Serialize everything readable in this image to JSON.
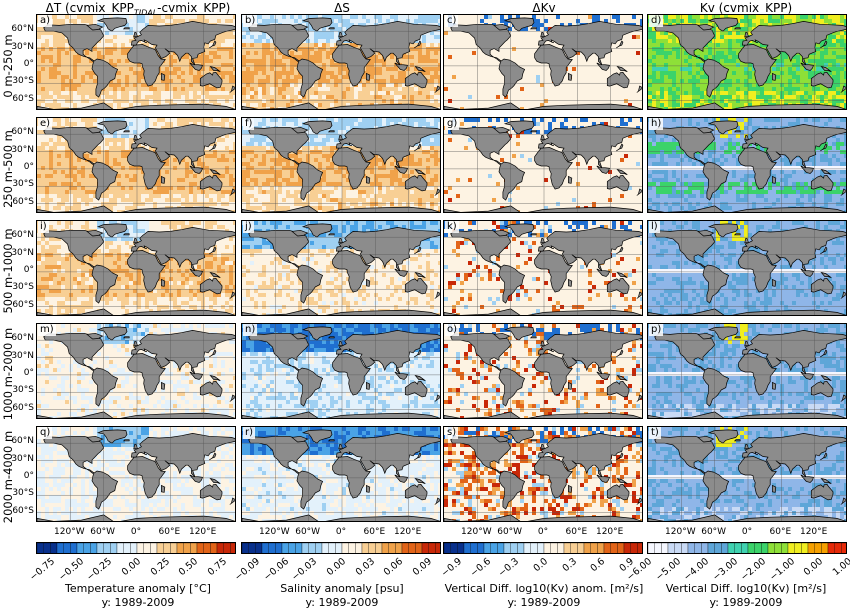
{
  "columns": [
    {
      "title_main": "ΔT (cvmix_KPP",
      "title_sub": "TIDAL",
      "title_end": "-cvmix_KPP)"
    },
    {
      "title_main": "ΔS"
    },
    {
      "title_main": "ΔKv"
    },
    {
      "title_main": "Kv (cvmix_KPP)"
    }
  ],
  "rows": [
    "0 m-250 m",
    "250 m-500 m",
    "500 m-1000 m",
    "1000 m-2000 m",
    "2000 m-4000 m"
  ],
  "panel_labels": [
    [
      "a)",
      "b)",
      "c)",
      "d)"
    ],
    [
      "e)",
      "f)",
      "g)",
      "h)"
    ],
    [
      "i)",
      "j)",
      "k)",
      "l)"
    ],
    [
      "m)",
      "n)",
      "o)",
      "p)"
    ],
    [
      "q)",
      "r)",
      "s)",
      "t)"
    ]
  ],
  "lat_ticks": [
    "60°N",
    "30°N",
    "0°",
    "30°S",
    "60°S"
  ],
  "lon_ticks": [
    "120°W",
    "60°W",
    "0°",
    "60°E",
    "120°E"
  ],
  "colorbars": [
    {
      "ticks": [
        "−0.75",
        "−0.50",
        "−0.25",
        "0.00",
        "0.25",
        "0.50",
        "0.75"
      ],
      "label": "Temperature anomaly [°C]",
      "period": "y: 1989-2009"
    },
    {
      "ticks": [
        "−0.09",
        "−0.06",
        "−0.03",
        "0.00",
        "0.03",
        "0.06",
        "0.09"
      ],
      "label": "Salinity anomaly [psu]",
      "period": "y: 1989-2009"
    },
    {
      "ticks": [
        "−0.9",
        "−0.6",
        "−0.3",
        "0.0",
        "0.3",
        "0.6",
        "0.9"
      ],
      "label": "Vertical Diff. log10(Kv) anom. [m²/s]",
      "period": "y: 1989-2009"
    },
    {
      "ticks": [
        "−6.00",
        "−5.00",
        "−4.00",
        "−3.00",
        "−2.00",
        "−1.00",
        "0.00",
        "1.00"
      ],
      "label": "Vertical Diff. log10(Kv) [m²/s]",
      "period": "y: 1989-2009"
    }
  ],
  "colors": {
    "land": "#8c8c8c",
    "diverging": [
      "#08308c",
      "#1f6fd0",
      "#4aa3e6",
      "#9fd0f2",
      "#e3f1fb",
      "#fdf3e3",
      "#f8cf94",
      "#f0a24a",
      "#e26418",
      "#c82808"
    ],
    "kv": [
      "#f5f7ff",
      "#c9daf5",
      "#8fb6e8",
      "#5ea6d8",
      "#3fd2b0",
      "#3bd36a",
      "#8ee038",
      "#f0ee20",
      "#f5a000",
      "#e62a08"
    ]
  }
}
